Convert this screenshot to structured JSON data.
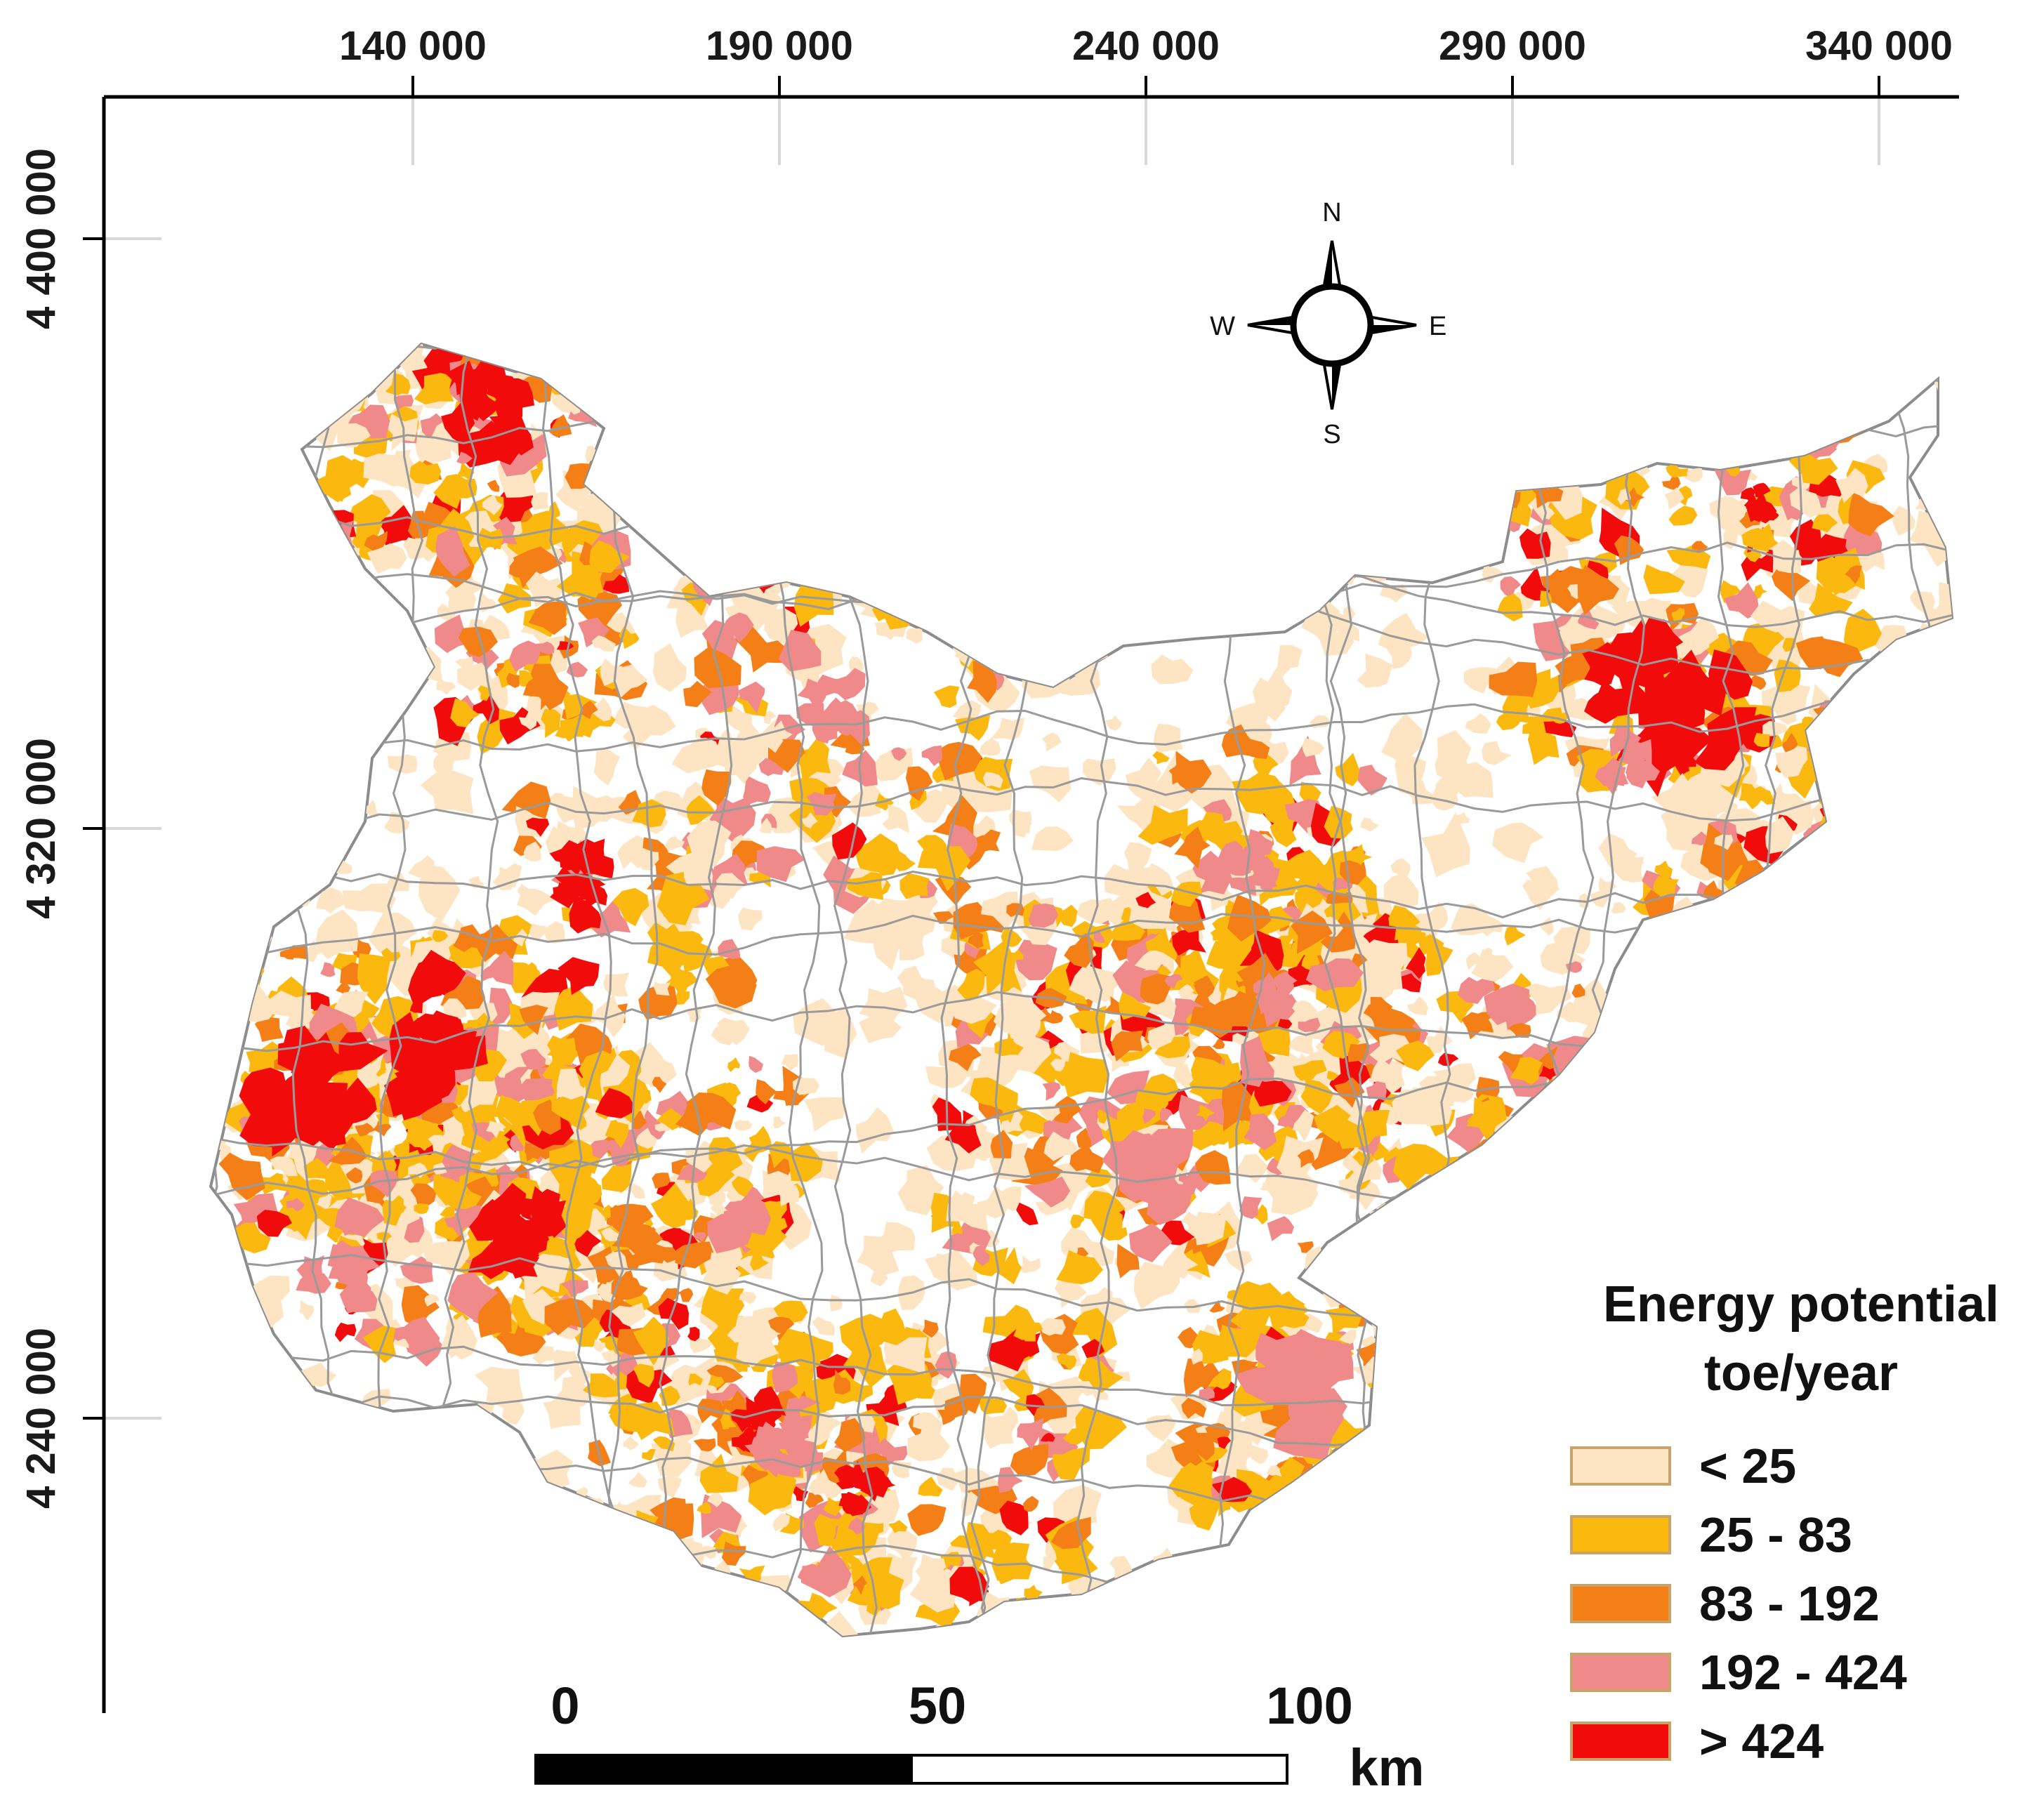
{
  "map": {
    "x_ticks": [
      "140 000",
      "190 000",
      "240 000",
      "290 000",
      "340 000"
    ],
    "y_ticks": [
      "4 400 000",
      "4 320 000",
      "4 240 000"
    ]
  },
  "compass": {
    "n": "N",
    "s": "S",
    "e": "E",
    "w": "W"
  },
  "legend": {
    "title_line1": "Energy potential",
    "title_line2": "toe/year",
    "items": [
      {
        "label": "< 25",
        "color": "#fde5c4"
      },
      {
        "label": "25 - 83",
        "color": "#fbb80f"
      },
      {
        "label": "83 - 192",
        "color": "#f57f17"
      },
      {
        "label": "192 - 424",
        "color": "#f08a8a"
      },
      {
        "label": "> 424",
        "color": "#f20b0b"
      }
    ]
  },
  "scale_bar": {
    "labels": [
      "0",
      "50",
      "100"
    ],
    "unit": "km"
  }
}
